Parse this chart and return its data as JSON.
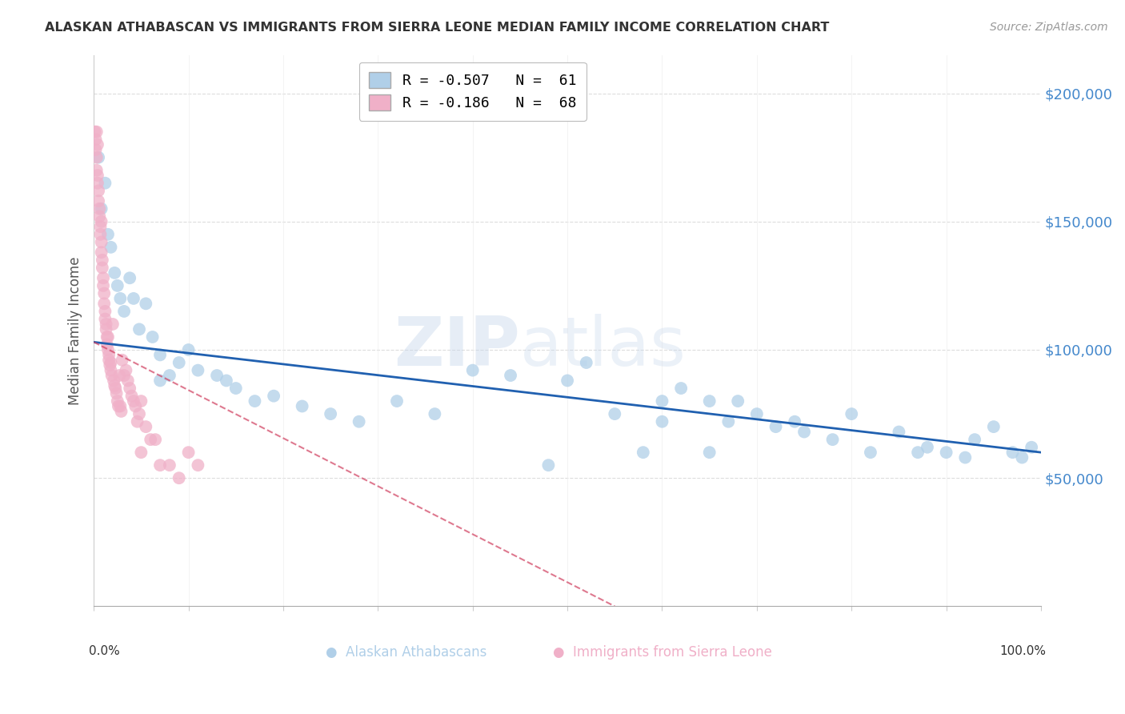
{
  "title": "ALASKAN ATHABASCAN VS IMMIGRANTS FROM SIERRA LEONE MEDIAN FAMILY INCOME CORRELATION CHART",
  "source": "Source: ZipAtlas.com",
  "ylabel": "Median Family Income",
  "yticks": [
    0,
    50000,
    100000,
    150000,
    200000
  ],
  "ytick_labels": [
    "",
    "$50,000",
    "$100,000",
    "$150,000",
    "$200,000"
  ],
  "ymax": 215000,
  "ymin": 0,
  "xmin": 0.0,
  "xmax": 1.0,
  "blue_color": "#b0cfe8",
  "pink_color": "#f0b0c8",
  "blue_line_color": "#2060b0",
  "pink_line_color": "#d04060",
  "legend_blue_label": "R = -0.507   N =  61",
  "legend_pink_label": "R = -0.186   N =  68",
  "blue_scatter_x": [
    0.005,
    0.008,
    0.012,
    0.015,
    0.018,
    0.022,
    0.025,
    0.028,
    0.032,
    0.038,
    0.042,
    0.048,
    0.055,
    0.062,
    0.07,
    0.08,
    0.09,
    0.1,
    0.11,
    0.13,
    0.15,
    0.17,
    0.19,
    0.22,
    0.25,
    0.28,
    0.32,
    0.36,
    0.4,
    0.44,
    0.48,
    0.5,
    0.52,
    0.55,
    0.58,
    0.6,
    0.62,
    0.65,
    0.67,
    0.68,
    0.7,
    0.72,
    0.74,
    0.75,
    0.78,
    0.8,
    0.82,
    0.85,
    0.87,
    0.88,
    0.9,
    0.92,
    0.93,
    0.95,
    0.97,
    0.98,
    0.99,
    0.14,
    0.07,
    0.6,
    0.65
  ],
  "blue_scatter_y": [
    175000,
    155000,
    165000,
    145000,
    140000,
    130000,
    125000,
    120000,
    115000,
    128000,
    120000,
    108000,
    118000,
    105000,
    98000,
    90000,
    95000,
    100000,
    92000,
    90000,
    85000,
    80000,
    82000,
    78000,
    75000,
    72000,
    80000,
    75000,
    92000,
    90000,
    55000,
    88000,
    95000,
    75000,
    60000,
    80000,
    85000,
    80000,
    72000,
    80000,
    75000,
    70000,
    72000,
    68000,
    65000,
    75000,
    60000,
    68000,
    60000,
    62000,
    60000,
    58000,
    65000,
    70000,
    60000,
    58000,
    62000,
    88000,
    88000,
    72000,
    60000
  ],
  "pink_scatter_x": [
    0.001,
    0.002,
    0.002,
    0.003,
    0.003,
    0.004,
    0.004,
    0.005,
    0.005,
    0.006,
    0.006,
    0.007,
    0.007,
    0.008,
    0.008,
    0.009,
    0.009,
    0.01,
    0.01,
    0.011,
    0.011,
    0.012,
    0.012,
    0.013,
    0.013,
    0.014,
    0.014,
    0.015,
    0.015,
    0.016,
    0.016,
    0.017,
    0.018,
    0.018,
    0.019,
    0.02,
    0.021,
    0.022,
    0.023,
    0.024,
    0.025,
    0.026,
    0.027,
    0.028,
    0.029,
    0.03,
    0.032,
    0.034,
    0.036,
    0.038,
    0.04,
    0.042,
    0.044,
    0.046,
    0.048,
    0.05,
    0.055,
    0.06,
    0.065,
    0.07,
    0.08,
    0.09,
    0.1,
    0.11,
    0.003,
    0.004,
    0.008,
    0.05
  ],
  "pink_scatter_y": [
    185000,
    182000,
    178000,
    175000,
    170000,
    168000,
    165000,
    162000,
    158000,
    155000,
    152000,
    148000,
    145000,
    142000,
    138000,
    135000,
    132000,
    128000,
    125000,
    122000,
    118000,
    115000,
    112000,
    108000,
    110000,
    105000,
    102000,
    105000,
    100000,
    98000,
    96000,
    94000,
    95000,
    92000,
    90000,
    110000,
    88000,
    86000,
    85000,
    83000,
    80000,
    78000,
    90000,
    78000,
    76000,
    96000,
    90000,
    92000,
    88000,
    85000,
    82000,
    80000,
    78000,
    72000,
    75000,
    80000,
    70000,
    65000,
    65000,
    55000,
    55000,
    50000,
    60000,
    55000,
    185000,
    180000,
    150000,
    60000
  ],
  "blue_trend_x0": 0.0,
  "blue_trend_y0": 103000,
  "blue_trend_x1": 1.0,
  "blue_trend_y1": 60000,
  "pink_trend_x0": 0.0,
  "pink_trend_y0": 103000,
  "pink_trend_x1": 0.55,
  "pink_trend_y1": 0,
  "watermark_zip": "ZIP",
  "watermark_atlas": "atlas",
  "background_color": "#ffffff",
  "grid_color": "#cccccc",
  "title_color": "#333333",
  "source_color": "#999999",
  "ylabel_color": "#555555",
  "ytick_color": "#4488cc",
  "xtick_color": "#333333"
}
